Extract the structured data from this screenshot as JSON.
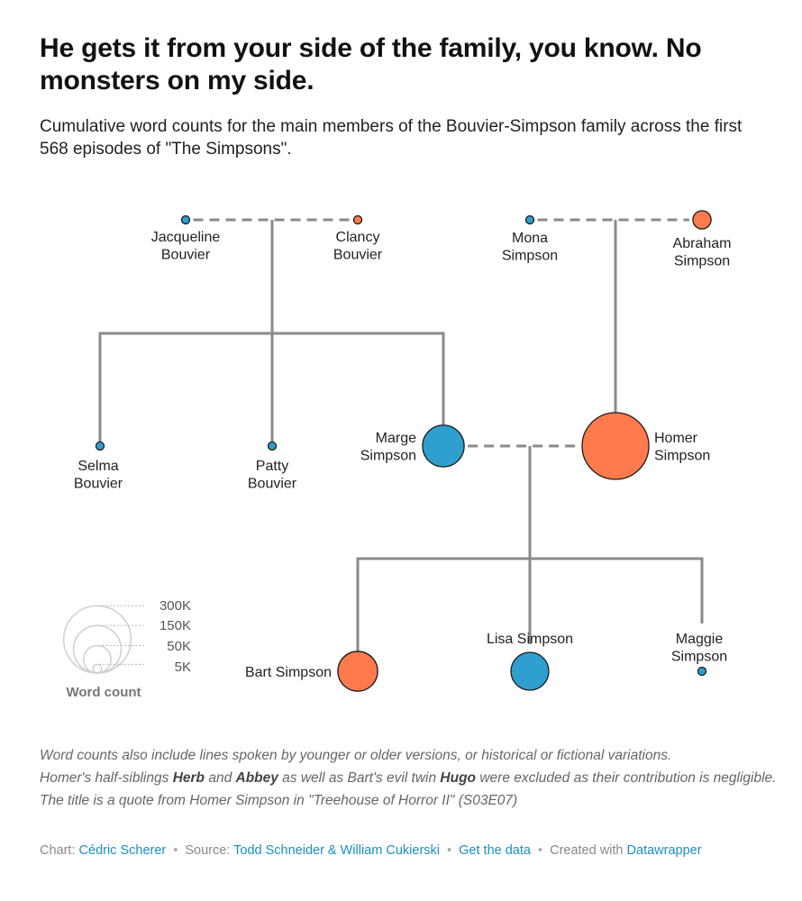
{
  "title": "He gets it from your side of the family, you know. No monsters on my side.",
  "subtitle": "Cumulative word counts for the main members of the Bouvier-Simpson family across the first 568 episodes of \"The Simpsons\".",
  "colors": {
    "female": "#2e9fce",
    "male": "#ff7a4d",
    "line": "#8a8a8a",
    "stroke": "#1a1a1a"
  },
  "chart_data": {
    "type": "table",
    "encoding": "bubble size = cumulative word count (approximate)",
    "members": [
      {
        "id": "jacqueline",
        "name": [
          "Jacqueline",
          "Bouvier"
        ],
        "word_count": 1200,
        "color": "female"
      },
      {
        "id": "clancy",
        "name": [
          "Clancy",
          "Bouvier"
        ],
        "word_count": 800,
        "color": "male"
      },
      {
        "id": "mona",
        "name": [
          "Mona",
          "Simpson"
        ],
        "word_count": 1500,
        "color": "female"
      },
      {
        "id": "abraham",
        "name": [
          "Abraham",
          "Simpson"
        ],
        "word_count": 22000,
        "color": "male"
      },
      {
        "id": "selma",
        "name": [
          "Selma",
          "Bouvier"
        ],
        "word_count": 3000,
        "color": "female"
      },
      {
        "id": "patty",
        "name": [
          "Patty",
          "Bouvier"
        ],
        "word_count": 2500,
        "color": "female"
      },
      {
        "id": "marge",
        "name": [
          "Marge",
          "Simpson"
        ],
        "word_count": 115000,
        "color": "female"
      },
      {
        "id": "homer",
        "name": [
          "Homer",
          "Simpson"
        ],
        "word_count": 295000,
        "color": "male"
      },
      {
        "id": "bart",
        "name": [
          "Bart Simpson"
        ],
        "word_count": 105000,
        "color": "male"
      },
      {
        "id": "lisa",
        "name": [
          "Lisa Simpson"
        ],
        "word_count": 95000,
        "color": "female"
      },
      {
        "id": "maggie",
        "name": [
          "Maggie",
          "Simpson"
        ],
        "word_count": 600,
        "color": "female"
      }
    ],
    "marriages": [
      [
        "jacqueline",
        "clancy"
      ],
      [
        "mona",
        "abraham"
      ],
      [
        "marge",
        "homer"
      ]
    ],
    "children": [
      {
        "parents": [
          "jacqueline",
          "clancy"
        ],
        "kids": [
          "selma",
          "patty",
          "marge"
        ]
      },
      {
        "parents": [
          "mona",
          "abraham"
        ],
        "kids": [
          "homer"
        ]
      },
      {
        "parents": [
          "marge",
          "homer"
        ],
        "kids": [
          "bart",
          "lisa",
          "maggie"
        ]
      }
    ],
    "legend": {
      "title": "Word count",
      "entries": [
        {
          "label": "300K",
          "value": 300000
        },
        {
          "label": "150K",
          "value": 150000
        },
        {
          "label": "50K",
          "value": 50000
        },
        {
          "label": "5K",
          "value": 5000
        }
      ]
    }
  },
  "notes": {
    "line1": "Word counts also include lines spoken by younger or older versions, or historical or fictional variations.",
    "line2_a": "Homer's half-siblings ",
    "herb": "Herb",
    "line2_b": " and ",
    "abbey": "Abbey",
    "line2_c": " as well as Bart's evil twin ",
    "hugo": "Hugo",
    "line2_d": " were excluded as their contribution is negligible.",
    "line3": "The title is a quote from Homer Simpson in \"Treehouse of Horror II\" (S03E07)"
  },
  "footer": {
    "chart_label": "Chart:",
    "chart_author": "Cédric Scherer",
    "source_label": "Source:",
    "source_value": "Todd Schneider & William Cukierski",
    "get_data": "Get the data",
    "created_label": "Created with",
    "created_tool": "Datawrapper",
    "separator": "•"
  }
}
